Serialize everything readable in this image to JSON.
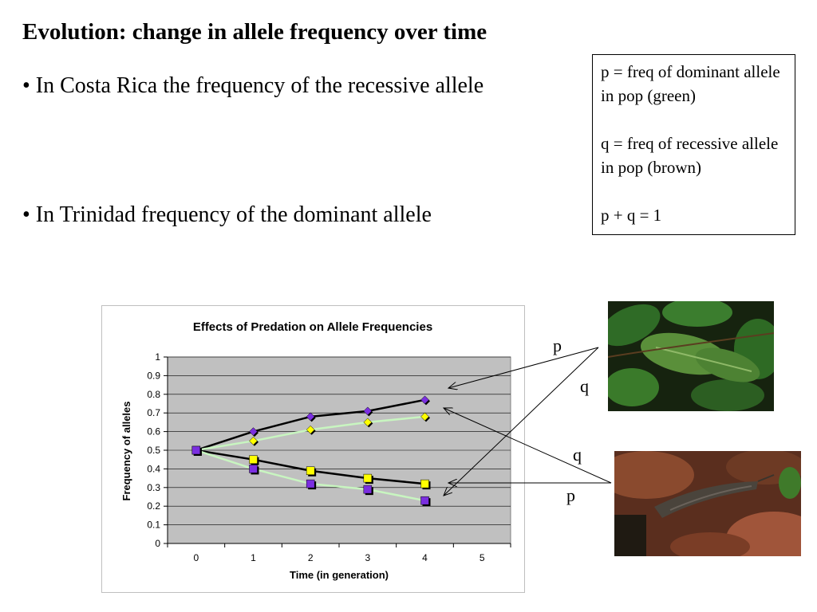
{
  "title": "Evolution: change in allele frequency over time",
  "bullets": [
    "• In Costa Rica the frequency of the recessive allele",
    "• In Trinidad frequency of the dominant allele"
  ],
  "legend_box": {
    "line1": "p = freq of dominant allele in pop (green)",
    "line2": "q = freq of recessive allele in pop (brown)",
    "line3": "p + q = 1"
  },
  "arrow_labels": {
    "top_p": "p",
    "top_q": "q",
    "bottom_q": "q",
    "bottom_p": "p"
  },
  "images": {
    "green": "green-katydid-on-leaves",
    "brown": "brown-katydid-on-dead-leaves"
  },
  "colors": {
    "plot_bg": "#c0c0c0",
    "purple": "#7b2fe0",
    "yellow": "#ffff00",
    "light_green_line": "#c8f5c0",
    "black_line": "#000000"
  },
  "chart_data": {
    "type": "line",
    "title": "Effects of Predation on Allele Frequencies",
    "xlabel": "Time (in generation)",
    "ylabel": "Frequency of alleles",
    "x": [
      0,
      1,
      2,
      3,
      4
    ],
    "xticks": [
      0,
      1,
      2,
      3,
      4,
      5
    ],
    "yticks": [
      0,
      0.1,
      0.2,
      0.3,
      0.4,
      0.5,
      0.6,
      0.7,
      0.8,
      0.9,
      1
    ],
    "xlim": [
      -0.5,
      5.5
    ],
    "ylim": [
      0,
      1
    ],
    "grid": "horizontal",
    "series": [
      {
        "marker": "diamond",
        "color": "purple",
        "line": "black",
        "values": [
          0.5,
          0.6,
          0.68,
          0.71,
          0.77
        ]
      },
      {
        "marker": "diamond",
        "color": "yellow",
        "line": "light-green",
        "values": [
          0.5,
          0.55,
          0.61,
          0.65,
          0.68
        ]
      },
      {
        "marker": "square",
        "color": "yellow",
        "line": "black",
        "values": [
          0.5,
          0.45,
          0.39,
          0.35,
          0.32
        ]
      },
      {
        "marker": "square",
        "color": "purple",
        "line": "light-green",
        "values": [
          0.5,
          0.4,
          0.32,
          0.29,
          0.23
        ]
      }
    ]
  }
}
